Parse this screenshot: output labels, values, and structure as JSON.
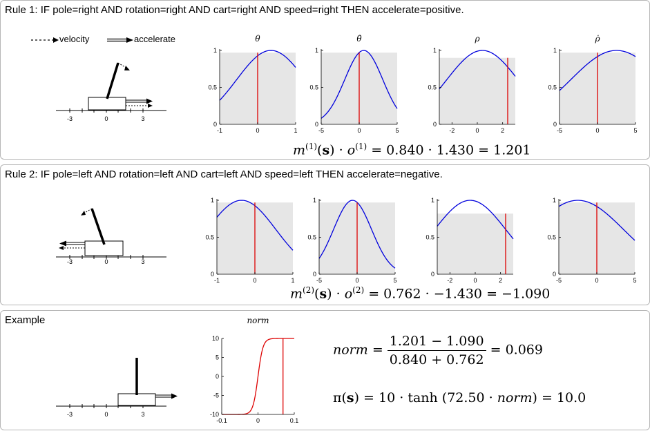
{
  "rule1": {
    "title": "Rule 1: IF pole=right AND rotation=right AND cart=right AND speed=right THEN accelerate=positive.",
    "formula": {
      "rule_index": "1",
      "m": "0.840",
      "o": "1.430",
      "result": "1.201"
    },
    "cart_axis_ticks": [
      "-3",
      "0",
      "3"
    ],
    "plots": [
      {
        "title": "θ",
        "xticks": [
          "-1",
          "0",
          "1"
        ],
        "yticks": [
          "0",
          "0.5",
          "1"
        ],
        "x_range": [
          -1,
          1
        ],
        "center": 0.35,
        "width": 0.9,
        "peak": 1.0,
        "marker_x": 0.0,
        "shade_level": 0.97
      },
      {
        "title": "θ̇",
        "xticks": [
          "-5",
          "0",
          "5"
        ],
        "yticks": [
          "0",
          "0.5",
          "1"
        ],
        "x_range": [
          -5,
          5
        ],
        "center": 0.6,
        "width": 2.5,
        "peak": 1.0,
        "marker_x": 0.0,
        "shade_level": 0.97
      },
      {
        "title": "ρ",
        "xticks": [
          "-2",
          "0",
          "2"
        ],
        "yticks": [
          "0",
          "0.5",
          "1"
        ],
        "x_range": [
          -3,
          3
        ],
        "center": 0.4,
        "width": 2.8,
        "peak": 1.0,
        "marker_x": 2.4,
        "shade_level": 0.9
      },
      {
        "title": "ρ̇",
        "xticks": [
          "-5",
          "0",
          "5"
        ],
        "yticks": [
          "0",
          "0.5",
          "1"
        ],
        "x_range": [
          -5,
          5
        ],
        "center": 2.5,
        "width": 6.0,
        "peak": 1.0,
        "marker_x": 0.0,
        "shade_level": 0.97
      }
    ]
  },
  "rule2": {
    "title": "Rule 2: IF pole=left AND rotation=left AND cart=left AND speed=left THEN accelerate=negative.",
    "formula": {
      "rule_index": "2",
      "m": "0.762",
      "o": "−1.430",
      "result": "−1.090"
    },
    "cart_axis_ticks": [
      "-3",
      "0",
      "3"
    ],
    "plots": [
      {
        "title": "",
        "xticks": [
          "-1",
          "0",
          "1"
        ],
        "yticks": [
          "0",
          "0.5",
          "1"
        ],
        "x_range": [
          -1,
          1
        ],
        "center": -0.35,
        "width": 0.9,
        "peak": 1.0,
        "marker_x": 0.0,
        "shade_level": 0.97
      },
      {
        "title": "",
        "xticks": [
          "-5",
          "0",
          "5"
        ],
        "yticks": [
          "0",
          "0.5",
          "1"
        ],
        "x_range": [
          -5,
          5
        ],
        "center": -0.6,
        "width": 2.5,
        "peak": 1.0,
        "marker_x": 0.0,
        "shade_level": 0.97
      },
      {
        "title": "",
        "xticks": [
          "-2",
          "0",
          "2"
        ],
        "yticks": [
          "0",
          "0.5",
          "1"
        ],
        "x_range": [
          -3,
          3
        ],
        "center": -0.4,
        "width": 2.8,
        "peak": 1.0,
        "marker_x": 2.4,
        "shade_level": 0.82
      },
      {
        "title": "",
        "xticks": [
          "-5",
          "0",
          "5"
        ],
        "yticks": [
          "0",
          "0.5",
          "1"
        ],
        "x_range": [
          -5,
          5
        ],
        "center": -2.5,
        "width": 6.0,
        "peak": 1.0,
        "marker_x": 0.0,
        "shade_level": 0.97
      }
    ]
  },
  "legend": {
    "velocity": "velocity",
    "accelerate": "accelerate"
  },
  "example": {
    "title": "Example",
    "cart_axis_ticks": [
      "-3",
      "0",
      "3"
    ],
    "norm_plot": {
      "title": "norm",
      "xticks": [
        "-0.1",
        "0",
        "0.1"
      ],
      "yticks": [
        "-10",
        "-5",
        "0",
        "5",
        "10"
      ],
      "x_range": [
        -0.1,
        0.1
      ],
      "y_range": [
        -10,
        10
      ],
      "gain": 72.5,
      "scale": 10,
      "marker_x": 0.069
    },
    "norm_formula": {
      "lhs": "norm",
      "num": "1.201 − 1.090",
      "den": "0.840 + 0.762",
      "result": "= 0.069"
    },
    "pi_formula": {
      "lhs": "π(",
      "s": "s",
      "mid": ") = 10 · tanh (72.50 · ",
      "var": "norm",
      "rhs": ") = 10.0"
    }
  },
  "colors": {
    "curve": "#0000dd",
    "marker": "#dd0000",
    "shade": "#e6e6e6",
    "border": "#b5b5b5"
  }
}
